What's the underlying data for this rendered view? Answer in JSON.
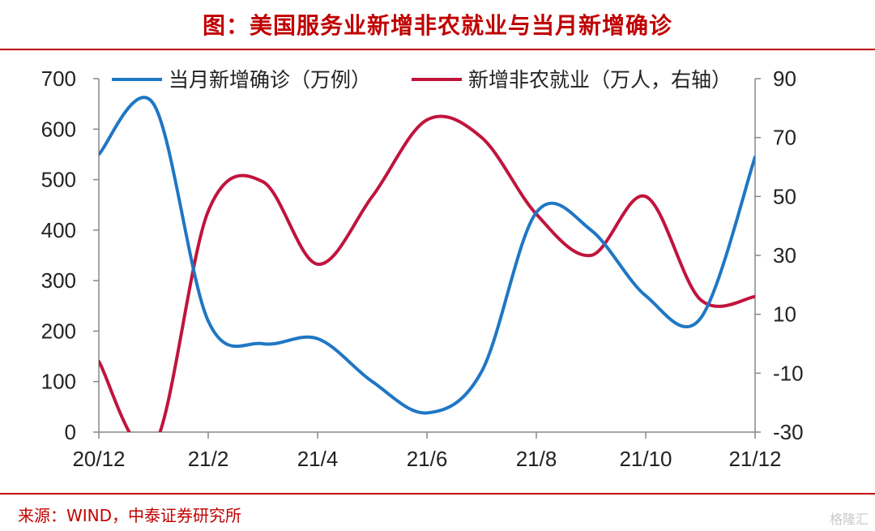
{
  "title": "图：美国服务业新增非农就业与当月新增确诊",
  "source": "来源：WIND，中泰证券研究所",
  "watermark": "格隆汇",
  "colors": {
    "accent": "#c00000",
    "blue_series": "#1f77c4",
    "red_series": "#c0143c"
  },
  "chart_data": {
    "type": "line",
    "x": [
      "20/12",
      "21/1",
      "21/2",
      "21/3",
      "21/4",
      "21/5",
      "21/6",
      "21/7",
      "21/8",
      "21/9",
      "21/10",
      "21/11",
      "21/12"
    ],
    "x_tick_labels": [
      "20/12",
      "21/2",
      "21/4",
      "21/6",
      "21/8",
      "21/10",
      "21/12"
    ],
    "y_left_ticks": [
      "0",
      "100",
      "200",
      "300",
      "400",
      "500",
      "600",
      "700"
    ],
    "y_left_range": [
      0,
      700
    ],
    "y_right_ticks": [
      "-30",
      "-10",
      "10",
      "30",
      "50",
      "70",
      "90"
    ],
    "y_right_range": [
      -30,
      90
    ],
    "legend_position": "top",
    "series": [
      {
        "name": "当月新增确诊（万例）",
        "axis": "left",
        "values": [
          550,
          650,
          220,
          175,
          185,
          100,
          38,
          120,
          435,
          400,
          270,
          225,
          545
        ]
      },
      {
        "name": "新增非农就业（万人，右轴）",
        "axis": "right",
        "values": [
          -6,
          -35,
          45,
          55,
          27,
          50,
          76,
          70,
          44,
          30,
          50,
          15,
          16
        ]
      }
    ]
  }
}
